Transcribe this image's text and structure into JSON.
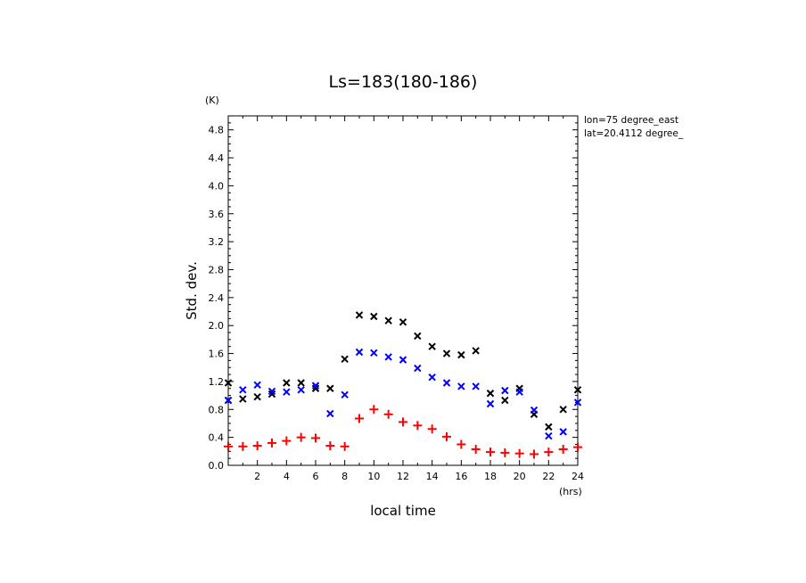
{
  "chart_data": {
    "type": "scatter",
    "title": "Ls=183(180-186)",
    "xlabel": "local time",
    "ylabel": "Std. dev.",
    "x_unit": "(hrs)",
    "y_unit": "(K)",
    "annotations": [
      "lon=75 degree_east",
      "lat=20.4112 degree_"
    ],
    "xlim": [
      0,
      24
    ],
    "ylim": [
      0,
      5.0
    ],
    "x_ticks": [
      2,
      4,
      6,
      8,
      10,
      12,
      14,
      16,
      18,
      20,
      22,
      24
    ],
    "y_ticks": [
      0.0,
      0.4,
      0.8,
      1.2,
      1.6,
      2.0,
      2.4,
      2.8,
      3.2,
      3.6,
      4.0,
      4.4,
      4.8
    ],
    "y_tick_labels": [
      "0.0",
      "0.4",
      "0.8",
      "1.2",
      "1.6",
      "2.0",
      "2.4",
      "2.8",
      "3.2",
      "3.6",
      "4.0",
      "4.4",
      "4.8"
    ],
    "grid": false,
    "series": [
      {
        "marker": "x",
        "color": "#000000",
        "x": [
          0,
          0,
          1,
          2,
          3,
          4,
          5,
          6,
          7,
          8,
          9,
          10,
          11,
          12,
          13,
          14,
          15,
          16,
          17,
          18,
          19,
          20,
          21,
          22,
          23,
          24
        ],
        "y": [
          1.18,
          0.93,
          0.95,
          0.98,
          1.02,
          1.18,
          1.18,
          1.1,
          1.1,
          1.52,
          2.15,
          2.13,
          2.07,
          2.05,
          1.85,
          1.7,
          1.6,
          1.58,
          1.64,
          1.03,
          0.93,
          1.1,
          0.73,
          0.55,
          0.8,
          1.08
        ]
      },
      {
        "marker": "x",
        "color": "#0000ff",
        "x": [
          0,
          1,
          2,
          3,
          4,
          5,
          6,
          7,
          8,
          9,
          10,
          11,
          12,
          13,
          14,
          15,
          16,
          17,
          18,
          19,
          20,
          21,
          22,
          23,
          24
        ],
        "y": [
          0.93,
          1.08,
          1.15,
          1.06,
          1.05,
          1.08,
          1.14,
          0.74,
          1.01,
          1.62,
          1.61,
          1.55,
          1.51,
          1.39,
          1.26,
          1.18,
          1.13,
          1.13,
          0.88,
          1.07,
          1.05,
          0.79,
          0.42,
          0.48,
          0.9
        ]
      },
      {
        "marker": "+",
        "color": "#ff0000",
        "x": [
          0,
          1,
          2,
          3,
          4,
          5,
          6,
          7,
          8,
          9,
          10,
          11,
          12,
          13,
          14,
          15,
          16,
          17,
          18,
          19,
          20,
          21,
          22,
          23,
          24
        ],
        "y": [
          0.27,
          0.27,
          0.28,
          0.32,
          0.35,
          0.4,
          0.39,
          0.28,
          0.27,
          0.67,
          0.8,
          0.73,
          0.62,
          0.57,
          0.52,
          0.41,
          0.3,
          0.23,
          0.19,
          0.18,
          0.17,
          0.16,
          0.19,
          0.23,
          0.26
        ]
      }
    ]
  }
}
